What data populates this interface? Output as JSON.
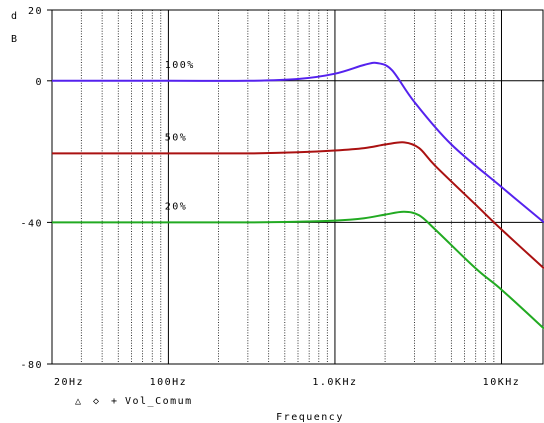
{
  "chart_data": {
    "type": "line",
    "xlabel": "Frequency",
    "ylabel": "dB",
    "xscale": "log",
    "xlim": [
      20,
      18000
    ],
    "ylim": [
      -80,
      20
    ],
    "xticks": [
      {
        "value": 20,
        "label": "20Hz"
      },
      {
        "value": 100,
        "label": "100Hz"
      },
      {
        "value": 1000,
        "label": "1.0KHz"
      },
      {
        "value": 10000,
        "label": "10KHz"
      }
    ],
    "yticks": [
      {
        "value": 20,
        "label": "20"
      },
      {
        "value": 0,
        "label": "0"
      },
      {
        "value": -40,
        "label": "-40"
      },
      {
        "value": -80,
        "label": "-80"
      }
    ],
    "grid": true,
    "legend": {
      "placement": "bottom-left",
      "markers": [
        {
          "symbol": "△",
          "color": "#22aa22"
        },
        {
          "symbol": "◇",
          "color": "#cc2222"
        },
        {
          "symbol": "+",
          "color": "#5522ee"
        }
      ],
      "label": "Vol_Comum"
    },
    "series": [
      {
        "label": "100%",
        "color": "#5522ee",
        "x": [
          20,
          100,
          300,
          600,
          1000,
          1500,
          1800,
          2200,
          3000,
          5000,
          10000,
          18000
        ],
        "y": [
          0,
          0,
          0,
          0.5,
          2,
          4.5,
          5,
          3,
          -6,
          -18,
          -30,
          -40
        ]
      },
      {
        "label": "50%",
        "color": "#aa1111",
        "x": [
          20,
          100,
          300,
          600,
          1000,
          1500,
          2000,
          2600,
          3200,
          4000,
          7000,
          10000,
          18000
        ],
        "y": [
          -20.5,
          -20.5,
          -20.5,
          -20.2,
          -19.7,
          -19,
          -18,
          -17.4,
          -19,
          -24,
          -35,
          -42,
          -53
        ]
      },
      {
        "label": "20%",
        "color": "#22aa22",
        "x": [
          20,
          100,
          300,
          600,
          1000,
          1500,
          2000,
          2600,
          3200,
          4000,
          7000,
          10000,
          18000
        ],
        "y": [
          -40,
          -40,
          -40,
          -39.8,
          -39.5,
          -38.8,
          -37.8,
          -37,
          -38,
          -42,
          -53,
          -59,
          -70
        ]
      }
    ]
  }
}
